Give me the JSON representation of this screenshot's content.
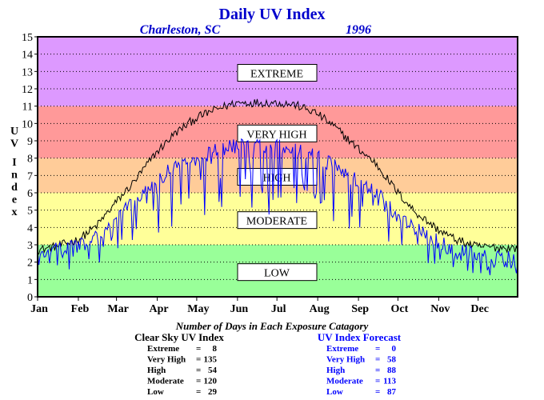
{
  "chart_data": {
    "type": "line",
    "title": "Daily UV Index",
    "location": "Charleston, SC",
    "year": "1996",
    "ylabel": "UV Index",
    "ylim": [
      0,
      15
    ],
    "yticks": [
      "0",
      "1",
      "2",
      "3",
      "4",
      "5",
      "6",
      "7",
      "8",
      "9",
      "10",
      "11",
      "12",
      "13",
      "14",
      "15"
    ],
    "x_axis_kind": "day of year",
    "xlim": [
      1,
      366
    ],
    "months": [
      "Jan",
      "Feb",
      "Mar",
      "Apr",
      "May",
      "Jun",
      "Jul",
      "Aug",
      "Sep",
      "Oct",
      "Nov",
      "Dec"
    ],
    "grid": "dotted horizontal",
    "bands": [
      {
        "label": "LOW",
        "from": 0,
        "to": 3,
        "color": "#99ff99",
        "label_y": 1.4
      },
      {
        "label": "MODERATE",
        "from": 3,
        "to": 6,
        "color": "#ffff99",
        "label_y": 4.4
      },
      {
        "label": "HIGH",
        "from": 6,
        "to": 8,
        "color": "#ffcc99",
        "label_y": 6.9
      },
      {
        "label": "VERY HIGH",
        "from": 8,
        "to": 11,
        "color": "#ff9999",
        "label_y": 9.4
      },
      {
        "label": "EXTREME",
        "from": 11,
        "to": 15,
        "color": "#dd99ff",
        "label_y": 12.9
      }
    ],
    "series": [
      {
        "name": "Clear Sky UV Index",
        "color": "#000000",
        "anchors": [
          [
            1,
            2.7
          ],
          [
            15,
            2.9
          ],
          [
            32,
            3.3
          ],
          [
            46,
            4.1
          ],
          [
            60,
            5.4
          ],
          [
            74,
            6.6
          ],
          [
            91,
            8.3
          ],
          [
            105,
            9.4
          ],
          [
            121,
            10.3
          ],
          [
            136,
            10.8
          ],
          [
            152,
            11.2
          ],
          [
            166,
            11.2
          ],
          [
            182,
            11.2
          ],
          [
            196,
            11.1
          ],
          [
            213,
            10.6
          ],
          [
            227,
            9.8
          ],
          [
            244,
            8.6
          ],
          [
            258,
            7.7
          ],
          [
            274,
            6.1
          ],
          [
            288,
            4.9
          ],
          [
            305,
            3.9
          ],
          [
            319,
            3.3
          ],
          [
            335,
            2.9
          ],
          [
            366,
            2.8
          ]
        ]
      },
      {
        "name": "UV Index Forecast",
        "color": "#0000ff",
        "anchors": [
          [
            1,
            2.5
          ],
          [
            15,
            2.6
          ],
          [
            32,
            2.9
          ],
          [
            46,
            3.3
          ],
          [
            60,
            4.4
          ],
          [
            74,
            5.4
          ],
          [
            91,
            6.6
          ],
          [
            105,
            7.4
          ],
          [
            121,
            7.9
          ],
          [
            136,
            8.3
          ],
          [
            152,
            8.6
          ],
          [
            166,
            8.6
          ],
          [
            182,
            8.6
          ],
          [
            196,
            8.4
          ],
          [
            213,
            8.1
          ],
          [
            227,
            7.4
          ],
          [
            244,
            6.6
          ],
          [
            258,
            5.9
          ],
          [
            274,
            4.7
          ],
          [
            288,
            3.8
          ],
          [
            305,
            3.1
          ],
          [
            319,
            2.6
          ],
          [
            335,
            2.3
          ],
          [
            366,
            2.1
          ]
        ]
      }
    ]
  },
  "summary": {
    "title": "Number of Days in Each Exposure Catagory",
    "clear": {
      "title": "Clear Sky UV Index",
      "rows": [
        {
          "label": "Extreme",
          "eq": "=",
          "value": "8"
        },
        {
          "label": "Very High",
          "eq": "=",
          "value": "135"
        },
        {
          "label": "High",
          "eq": "=",
          "value": "54"
        },
        {
          "label": "Moderate",
          "eq": "=",
          "value": "120"
        },
        {
          "label": "Low",
          "eq": "=",
          "value": "29"
        }
      ]
    },
    "forecast": {
      "title": "UV Index Forecast",
      "rows": [
        {
          "label": "Extreme",
          "eq": "=",
          "value": "0"
        },
        {
          "label": "Very High",
          "eq": "=",
          "value": "58"
        },
        {
          "label": "High",
          "eq": "=",
          "value": "88"
        },
        {
          "label": "Moderate",
          "eq": "=",
          "value": "113"
        },
        {
          "label": "Low",
          "eq": "=",
          "value": "87"
        }
      ]
    }
  },
  "colors": {
    "title": "#0000cc",
    "forecast": "#0000ff",
    "text": "#000000"
  }
}
